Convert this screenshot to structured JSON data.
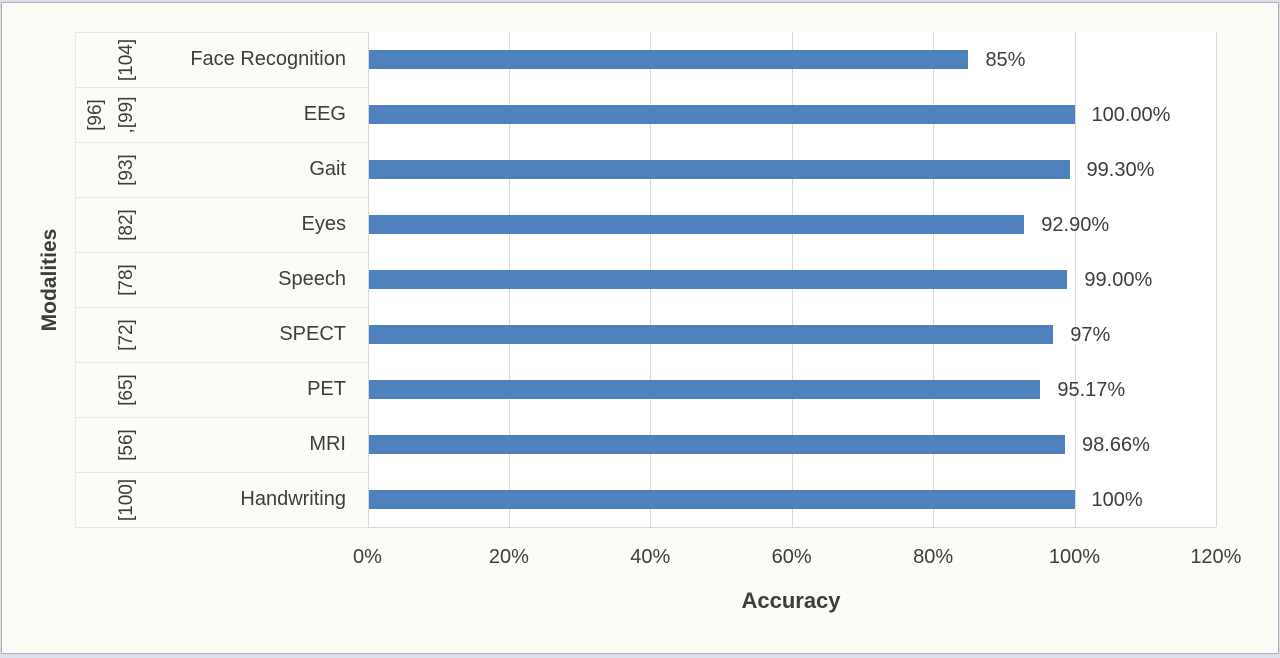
{
  "figure": {
    "background_color": "#fcfcf6",
    "frame_color": "#b0b0b0",
    "edge_strip_color": "#dbe2ee"
  },
  "chart_data": {
    "type": "bar",
    "orientation": "horizontal",
    "title": "",
    "xlabel": "Accuracy",
    "ylabel": "Modalities",
    "xlim": [
      0,
      120
    ],
    "grid": true,
    "legend": "none",
    "bar_color": "#4f81bd",
    "gridline_color": "#d9d9d9",
    "separator_color": "#eae8da",
    "text_color": "#3d3d3d",
    "x_tick_labels": [
      "0%",
      "20%",
      "40%",
      "60%",
      "80%",
      "100%",
      "120%"
    ],
    "x_tick_values": [
      0,
      20,
      40,
      60,
      80,
      100,
      120
    ],
    "categories": [
      "Face Recognition",
      "EEG",
      "Gait",
      "Eyes",
      "Speech",
      "SPECT",
      "PET",
      "MRI",
      "Handwriting"
    ],
    "values": [
      85,
      100,
      99.3,
      92.9,
      99,
      97,
      95.17,
      98.66,
      100
    ],
    "value_labels": [
      "85%",
      "100.00%",
      "99.30%",
      "92.90%",
      "99.00%",
      "97%",
      "95.17%",
      "98.66%",
      "100%"
    ],
    "citations": [
      [
        "[104]"
      ],
      [
        "[96]",
        ",[99]"
      ],
      [
        "[93]"
      ],
      [
        "[82]"
      ],
      [
        "[78]"
      ],
      [
        "[72]"
      ],
      [
        "[65]"
      ],
      [
        "[56]"
      ],
      [
        "[100]"
      ]
    ]
  }
}
